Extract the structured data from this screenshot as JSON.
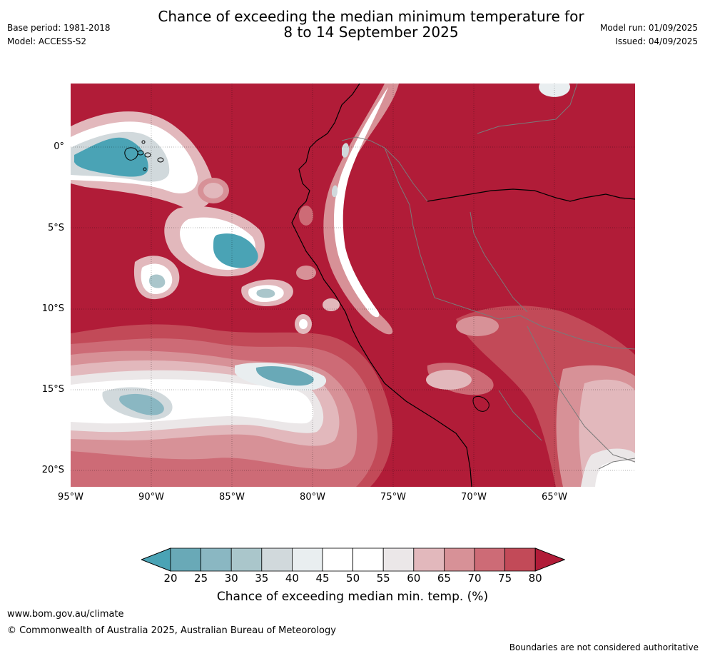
{
  "title_line1": "Chance of exceeding the median minimum temperature for",
  "title_line2": "8 to 14 September 2025",
  "meta_left": {
    "base_period": "Base period: 1981-2018",
    "model": "Model: ACCESS-S2"
  },
  "meta_right": {
    "model_run": "Model run: 01/09/2025",
    "issued": "Issued: 04/09/2025"
  },
  "map": {
    "lat_labels": [
      "0°",
      "5°S",
      "10°S",
      "15°S",
      "20°S"
    ],
    "lon_labels": [
      "95°W",
      "90°W",
      "85°W",
      "80°W",
      "75°W",
      "70°W",
      "65°W"
    ],
    "colors": {
      "c80": "#b11c38",
      "c75": "#c24a58",
      "c70": "#cd6b76",
      "c65": "#d79197",
      "c60": "#e2b8bc",
      "c55": "#ebe7e8",
      "c50": "#ffffff",
      "c45": "#e9eef0",
      "c40": "#d1d9dc",
      "c35": "#aac6cb",
      "c30": "#8ab7c2",
      "c25": "#69a9b7",
      "c20": "#4aa3b5",
      "coast": "#000000",
      "border": "#7a7a7a"
    }
  },
  "colorbar": {
    "ticks": [
      "20",
      "25",
      "30",
      "35",
      "40",
      "45",
      "50",
      "55",
      "60",
      "65",
      "70",
      "75",
      "80"
    ],
    "colors": [
      "#4aa3b5",
      "#69a9b7",
      "#8ab7c2",
      "#aac6cb",
      "#d1d9dc",
      "#e9eef0",
      "#ffffff",
      "#ffffff",
      "#ebe7e8",
      "#e2b8bc",
      "#d79197",
      "#cd6b76",
      "#c24a58",
      "#b11c38"
    ],
    "label": "Chance of exceeding median min. temp. (%)"
  },
  "footer": {
    "url": "www.bom.gov.au/climate",
    "copyright": "© Commonwealth of Australia 2025, Australian Bureau of Meteorology",
    "note": "Boundaries are not considered authoritative"
  }
}
